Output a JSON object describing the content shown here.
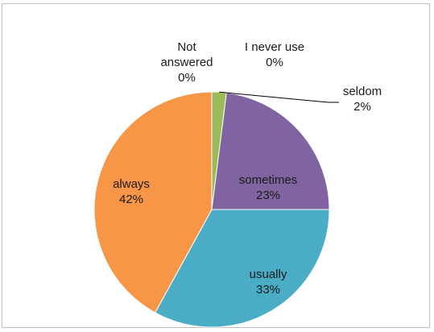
{
  "chart_data": {
    "type": "pie",
    "title": "",
    "slices": [
      {
        "label": "Not answered",
        "label_lines": [
          "Not",
          "answered"
        ],
        "value": 0,
        "value_label": "0%",
        "color": "#5b9bd5"
      },
      {
        "label": "I never use",
        "label_lines": [
          "I never use"
        ],
        "value": 0,
        "value_label": "0%",
        "color": "#c0504d"
      },
      {
        "label": "seldom",
        "label_lines": [
          "seldom"
        ],
        "value": 2,
        "value_label": "2%",
        "color": "#9bbb59"
      },
      {
        "label": "sometimes",
        "label_lines": [
          "sometimes"
        ],
        "value": 23,
        "value_label": "23%",
        "color": "#8064a2"
      },
      {
        "label": "usually",
        "label_lines": [
          "usually"
        ],
        "value": 33,
        "value_label": "33%",
        "color": "#4bacc6"
      },
      {
        "label": "always",
        "label_lines": [
          "always"
        ],
        "value": 42,
        "value_label": "42%",
        "color": "#f79646"
      }
    ],
    "start_angle_deg": 0,
    "direction": "clockwise",
    "legend": "none"
  }
}
